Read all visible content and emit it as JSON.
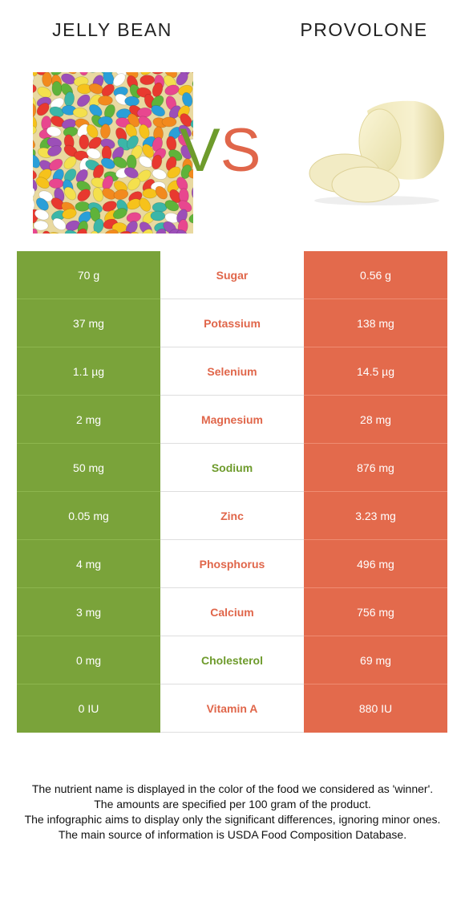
{
  "header": {
    "left_food": "JELLY BEAN",
    "right_food": "PROVOLONE",
    "vs_v": "V",
    "vs_s": "S"
  },
  "colors": {
    "left": "#7aa33a",
    "right": "#e36a4c"
  },
  "rows": [
    {
      "left": "70 g",
      "nutrient": "Sugar",
      "right": "0.56 g",
      "winner": "right"
    },
    {
      "left": "37 mg",
      "nutrient": "Potassium",
      "right": "138 mg",
      "winner": "right"
    },
    {
      "left": "1.1 µg",
      "nutrient": "Selenium",
      "right": "14.5 µg",
      "winner": "right"
    },
    {
      "left": "2 mg",
      "nutrient": "Magnesium",
      "right": "28 mg",
      "winner": "right"
    },
    {
      "left": "50 mg",
      "nutrient": "Sodium",
      "right": "876 mg",
      "winner": "left"
    },
    {
      "left": "0.05 mg",
      "nutrient": "Zinc",
      "right": "3.23 mg",
      "winner": "right"
    },
    {
      "left": "4 mg",
      "nutrient": "Phosphorus",
      "right": "496 mg",
      "winner": "right"
    },
    {
      "left": "3 mg",
      "nutrient": "Calcium",
      "right": "756 mg",
      "winner": "right"
    },
    {
      "left": "0 mg",
      "nutrient": "Cholesterol",
      "right": "69 mg",
      "winner": "left"
    },
    {
      "left": "0 IU",
      "nutrient": "Vitamin A",
      "right": "880 IU",
      "winner": "right"
    }
  ],
  "footnote": [
    "The nutrient name is displayed in the color of the food we considered as 'winner'.",
    "The amounts are specified per 100 gram of the product.",
    "The infographic aims to display only the significant differences, ignoring minor ones.",
    "The main source of information is USDA Food Composition Database."
  ]
}
